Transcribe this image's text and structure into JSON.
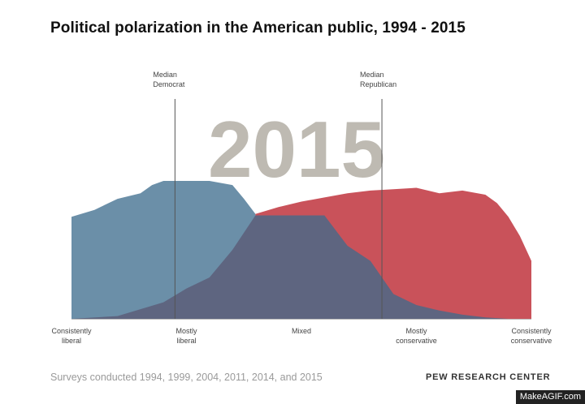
{
  "title": "Political polarization in the American public, 1994 - 2015",
  "footer_note": "Surveys conducted 1994, 1999, 2004, 2011, 2014, and 2015",
  "credit": "PEW RESEARCH CENTER",
  "watermark": "MakeAGIF.com",
  "colors": {
    "democrat": "#6b8fa8",
    "republican": "#c9525a",
    "overlap": "#5e6580",
    "year": "#b3afa5",
    "axis": "#bbbbbb",
    "median_line": "#555555"
  },
  "chart_data": {
    "type": "area",
    "title": "Political polarization in the American public, 1994 - 2015",
    "year_label": "2015",
    "x_scale": "ideological consistency scale, -10 (consistently liberal) to +10 (consistently conservative)",
    "xlim": [
      -10,
      10
    ],
    "ylim": [
      0,
      100
    ],
    "tick_positions": [
      -10,
      -5,
      0,
      5,
      10
    ],
    "tick_labels": [
      [
        "Consistently",
        "liberal"
      ],
      [
        "Mostly",
        "liberal"
      ],
      [
        "Mixed"
      ],
      [
        "Mostly",
        "conservative"
      ],
      [
        "Consistently",
        "conservative"
      ]
    ],
    "medians": [
      {
        "name": "Median Democrat",
        "label_lines": [
          "Median",
          "Democrat"
        ],
        "x": -5.5
      },
      {
        "name": "Median Republican",
        "label_lines": [
          "Median",
          "Republican"
        ],
        "x": 3.5
      }
    ],
    "series": [
      {
        "name": "Democrats",
        "x": [
          -10,
          -9,
          -8,
          -7,
          -6.5,
          -6,
          -5,
          -4,
          -3,
          -2.5,
          -2
        ],
        "y": [
          74,
          79,
          87,
          91,
          97,
          100,
          100,
          100,
          97,
          87,
          76
        ]
      },
      {
        "name": "Republicans",
        "x": [
          -2,
          -1,
          0,
          1,
          2,
          3,
          4,
          5,
          5.5,
          6,
          7,
          8,
          8.5,
          9,
          9.5,
          10
        ],
        "y": [
          76,
          81,
          85,
          88,
          91,
          93,
          94,
          95,
          93,
          91,
          93,
          90,
          84,
          74,
          60,
          42
        ]
      },
      {
        "name": "Overlap",
        "x": [
          -10,
          -8,
          -7,
          -6,
          -5,
          -4,
          -3,
          -2,
          1,
          2,
          3,
          4,
          5,
          6,
          7,
          8,
          9,
          10
        ],
        "y": [
          0,
          2,
          7,
          12,
          22,
          30,
          50,
          75,
          75,
          53,
          42,
          18,
          10,
          6,
          3,
          1,
          0,
          0
        ]
      }
    ]
  }
}
